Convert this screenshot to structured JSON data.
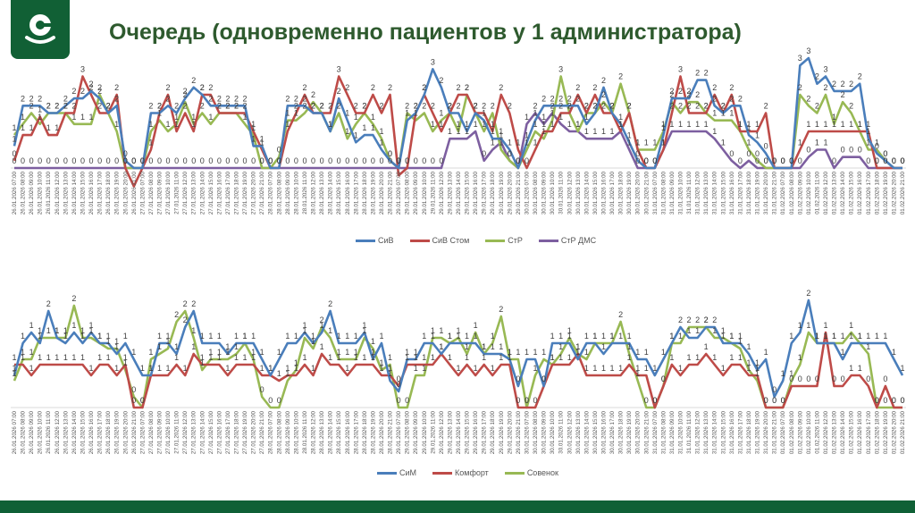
{
  "header": {
    "title": "Очередь (одновременно пациентов у 1 администратора)",
    "logo_icon": "clinic-logo-icon",
    "brand_color": "#116035"
  },
  "footer": {
    "color": "#0f6036"
  },
  "chart_data": [
    {
      "type": "line",
      "title": "",
      "xlabel": "",
      "ylabel": "",
      "ylim": [
        0,
        3
      ],
      "grid": false,
      "legend_position": "bottom",
      "data_labels": "rounded integers shown above points",
      "x_days": [
        "26.01.2026",
        "27.01.2026",
        "28.01.2026",
        "29.01.2026",
        "30.01.2026",
        "31.01.2026",
        "01.02.2026"
      ],
      "x_hours": [
        "07:00",
        "08:00",
        "09:00",
        "10:00",
        "11:00",
        "12:00",
        "13:00",
        "14:00",
        "15:00",
        "16:00",
        "17:00",
        "18:00",
        "19:00",
        "20:00",
        "21:00"
      ],
      "series": [
        {
          "name": "СиВ",
          "color": "#4a7ebb",
          "values": [
            0.6,
            1.7,
            1.7,
            1.7,
            1.5,
            1.5,
            1.7,
            1.9,
            1.9,
            2.1,
            1.9,
            1.5,
            1.7,
            0.2,
            0.0,
            0.0,
            1.5,
            1.5,
            1.7,
            1.5,
            1.9,
            2.2,
            2.0,
            1.7,
            1.7,
            1.7,
            1.7,
            1.7,
            0.6,
            0.6,
            0.0,
            0.0,
            1.7,
            1.7,
            1.7,
            1.5,
            1.5,
            1.0,
            1.9,
            1.3,
            0.7,
            0.9,
            0.9,
            0.5,
            0.2,
            0.0,
            1.3,
            1.5,
            2.0,
            2.7,
            2.2,
            1.5,
            1.5,
            1.0,
            1.5,
            1.3,
            0.8,
            0.8,
            0.5,
            0.0,
            0.7,
            1.3,
            1.7,
            1.7,
            1.7,
            1.7,
            1.7,
            1.2,
            1.5,
            2.2,
            1.5,
            1.2,
            0.7,
            0.2,
            0.0,
            0.0,
            0.9,
            1.9,
            1.9,
            1.9,
            2.4,
            2.4,
            1.7,
            1.5,
            1.7,
            1.7,
            0.9,
            0.7,
            0.4,
            0.0,
            0.0,
            0.0,
            2.8,
            3.0,
            2.3,
            2.5,
            2.1,
            2.1,
            2.1,
            2.3,
            0.8,
            0.4,
            0.2,
            0.0,
            0.0
          ]
        },
        {
          "name": "СиВ Стом",
          "color": "#be4b48",
          "values": [
            0.2,
            0.9,
            0.9,
            1.4,
            0.9,
            0.9,
            1.5,
            1.5,
            2.5,
            2.0,
            1.5,
            1.5,
            2.0,
            0.0,
            -0.5,
            0.0,
            0.5,
            1.5,
            2.0,
            1.0,
            1.5,
            1.0,
            2.0,
            2.0,
            1.5,
            1.5,
            1.5,
            1.5,
            1.0,
            0.5,
            0.0,
            0.0,
            1.0,
            1.5,
            2.0,
            1.5,
            1.5,
            1.5,
            2.5,
            2.0,
            1.5,
            1.5,
            2.0,
            1.5,
            2.0,
            -0.2,
            0.0,
            1.5,
            2.0,
            1.5,
            1.0,
            1.5,
            2.0,
            2.0,
            1.5,
            1.5,
            1.0,
            2.0,
            1.5,
            0.5,
            0.0,
            0.5,
            1.0,
            1.0,
            1.5,
            1.5,
            2.0,
            1.5,
            2.0,
            1.5,
            1.5,
            1.0,
            1.5,
            0.5,
            0.0,
            0.0,
            0.5,
            1.5,
            2.5,
            1.5,
            1.5,
            1.5,
            2.0,
            1.5,
            2.0,
            1.0,
            1.0,
            1.0,
            1.5,
            0.0,
            0.0,
            0.0,
            0.5,
            1.0,
            1.0,
            1.0,
            1.0,
            1.0,
            1.0,
            1.0,
            1.0,
            0.0,
            0.0,
            0.0,
            0.0
          ]
        },
        {
          "name": "СтР",
          "color": "#98b954",
          "values": [
            0.9,
            1.2,
            1.5,
            1.2,
            1.5,
            1.5,
            1.5,
            1.2,
            1.2,
            1.2,
            2.0,
            1.5,
            1.0,
            0.0,
            0.0,
            0.0,
            1.0,
            1.3,
            1.0,
            1.2,
            1.8,
            1.2,
            1.5,
            1.2,
            1.5,
            1.5,
            1.5,
            1.2,
            0.9,
            0.0,
            0.0,
            0.3,
            1.3,
            1.3,
            1.5,
            1.8,
            1.5,
            1.0,
            1.5,
            0.8,
            1.2,
            1.5,
            1.2,
            0.8,
            0.2,
            0.0,
            1.5,
            1.3,
            1.5,
            1.0,
            1.3,
            1.5,
            1.0,
            2.0,
            1.5,
            1.0,
            1.5,
            0.5,
            0.2,
            0.0,
            0.5,
            1.0,
            0.8,
            1.3,
            2.5,
            1.5,
            1.0,
            1.5,
            1.5,
            1.8,
            1.5,
            2.3,
            1.5,
            0.5,
            0.5,
            0.5,
            1.0,
            1.8,
            1.5,
            1.8,
            1.8,
            1.5,
            1.3,
            1.3,
            1.3,
            1.0,
            0.5,
            0.2,
            0.0,
            0.0,
            0.0,
            0.0,
            2.0,
            1.7,
            1.5,
            2.0,
            1.2,
            1.8,
            1.5,
            1.0,
            0.5,
            0.5,
            0.2,
            0.0,
            0.0
          ]
        },
        {
          "name": "СтР ДМС",
          "color": "#7d5fa0",
          "values": [
            0,
            0,
            0,
            0,
            0,
            0,
            0,
            0,
            0,
            0,
            0,
            0,
            0,
            0,
            0,
            0,
            0,
            0,
            0,
            0,
            0,
            0,
            0,
            0,
            0,
            0,
            0,
            0,
            0,
            0,
            0,
            0,
            0,
            0,
            0,
            0,
            0,
            0,
            0,
            0,
            0,
            0,
            0,
            0,
            0,
            0,
            0,
            0,
            0,
            0,
            0,
            0.8,
            0.8,
            0.8,
            1.0,
            0.2,
            0.5,
            0.7,
            0.2,
            0.0,
            1.2,
            1.5,
            1.2,
            1.5,
            1.2,
            1.0,
            1.0,
            0.8,
            0.8,
            0.8,
            0.8,
            1.0,
            0.5,
            0.0,
            0.0,
            0.0,
            0.5,
            1.0,
            1.0,
            1.0,
            1.0,
            1.0,
            0.8,
            0.5,
            0.2,
            0.0,
            0.2,
            0.0,
            0.0,
            0.0,
            0.0,
            0.0,
            0.0,
            0.3,
            0.5,
            0.5,
            0.0,
            0.3,
            0.3,
            0.3,
            0.0,
            0.0,
            0.0,
            0.0,
            0.0
          ]
        }
      ]
    },
    {
      "type": "line",
      "title": "",
      "xlabel": "",
      "ylabel": "",
      "ylim": [
        0,
        2
      ],
      "grid": false,
      "legend_position": "bottom",
      "data_labels": "rounded integers shown above points",
      "x_days": [
        "26.01.2026",
        "27.01.2026",
        "28.01.2026",
        "29.01.2026",
        "30.01.2026",
        "31.01.2026",
        "01.02.2026"
      ],
      "x_hours": [
        "07:00",
        "08:00",
        "09:00",
        "10:00",
        "11:00",
        "12:00",
        "13:00",
        "14:00",
        "15:00",
        "16:00",
        "17:00",
        "18:00",
        "19:00",
        "20:00",
        "21:00"
      ],
      "series": [
        {
          "name": "СиМ",
          "color": "#4a7ebb",
          "values": [
            0.6,
            1.2,
            1.4,
            1.2,
            1.8,
            1.3,
            1.2,
            1.4,
            1.2,
            1.4,
            1.2,
            1.2,
            1.0,
            1.2,
            0.9,
            0.6,
            0.6,
            1.2,
            1.2,
            1.0,
            1.5,
            1.8,
            1.2,
            1.2,
            1.2,
            1.0,
            1.2,
            1.2,
            1.2,
            0.9,
            0.6,
            0.9,
            1.2,
            1.2,
            1.4,
            1.2,
            1.4,
            1.8,
            1.2,
            1.2,
            1.2,
            1.4,
            0.9,
            1.2,
            0.5,
            0.3,
            0.9,
            0.9,
            1.2,
            1.2,
            1.0,
            1.2,
            1.2,
            1.2,
            1.2,
            1.0,
            1.0,
            1.0,
            0.9,
            0.4,
            0.9,
            0.9,
            0.4,
            1.2,
            1.2,
            1.2,
            0.9,
            1.2,
            1.2,
            1.0,
            1.2,
            1.2,
            1.2,
            0.9,
            0.9,
            0.6,
            0.9,
            1.2,
            1.5,
            1.3,
            1.3,
            1.5,
            1.5,
            1.2,
            1.2,
            1.2,
            1.0,
            0.7,
            0.9,
            0.2,
            0.5,
            1.2,
            1.4,
            2.0,
            1.2,
            1.2,
            1.2,
            0.9,
            1.2,
            1.2,
            1.2,
            1.2,
            1.2,
            0.9,
            0.6
          ]
        },
        {
          "name": "Комфорт",
          "color": "#be4b48",
          "values": [
            0.8,
            0.8,
            0.6,
            0.8,
            0.8,
            0.8,
            0.8,
            0.8,
            0.8,
            0.6,
            0.8,
            0.8,
            0.6,
            0.8,
            0.0,
            0.0,
            0.6,
            0.6,
            0.6,
            0.8,
            0.6,
            1.0,
            0.8,
            0.8,
            0.8,
            0.6,
            0.8,
            0.8,
            0.8,
            0.6,
            0.6,
            0.5,
            0.6,
            0.6,
            0.8,
            0.6,
            1.0,
            0.8,
            0.8,
            0.6,
            0.8,
            0.8,
            0.8,
            0.6,
            0.6,
            0.4,
            0.8,
            0.8,
            0.8,
            0.8,
            1.0,
            0.8,
            0.6,
            0.8,
            0.6,
            0.8,
            0.6,
            0.8,
            0.8,
            0.0,
            0.0,
            0.0,
            0.4,
            0.8,
            0.8,
            0.8,
            1.0,
            0.6,
            0.6,
            0.6,
            0.6,
            0.6,
            0.8,
            0.6,
            0.6,
            0.0,
            0.4,
            0.8,
            0.6,
            0.8,
            0.8,
            1.0,
            0.8,
            0.6,
            0.8,
            0.8,
            0.6,
            0.6,
            0.0,
            0.0,
            0.0,
            0.4,
            0.4,
            0.4,
            0.4,
            1.4,
            0.4,
            0.4,
            0.6,
            0.6,
            0.4,
            0.0,
            0.4,
            0.0,
            0.0
          ]
        },
        {
          "name": "Совенок",
          "color": "#98b954",
          "values": [
            0.5,
            0.9,
            0.9,
            1.3,
            1.3,
            1.3,
            1.3,
            1.9,
            1.3,
            1.3,
            1.2,
            1.1,
            1.1,
            0.7,
            0.2,
            0.0,
            0.9,
            1.0,
            1.1,
            1.6,
            1.8,
            1.3,
            0.7,
            0.9,
            0.9,
            0.9,
            1.0,
            1.2,
            0.9,
            0.2,
            0.0,
            0.0,
            0.5,
            0.7,
            1.3,
            1.1,
            1.5,
            1.3,
            0.9,
            0.9,
            0.9,
            1.3,
            1.1,
            0.7,
            0.8,
            0.0,
            0.0,
            0.6,
            0.6,
            1.3,
            1.3,
            1.2,
            1.3,
            1.0,
            1.4,
            1.0,
            1.2,
            1.7,
            0.9,
            0.9,
            0.0,
            0.6,
            0.9,
            0.8,
            1.0,
            1.3,
            1.0,
            0.9,
            1.2,
            1.2,
            1.2,
            1.6,
            1.0,
            0.5,
            0.0,
            0.0,
            0.4,
            1.2,
            1.2,
            1.5,
            1.5,
            1.5,
            1.3,
            1.3,
            1.2,
            1.1,
            0.7,
            0.5,
            0.0,
            0.0,
            0.0,
            0.5,
            0.8,
            1.4,
            1.2,
            1.2,
            1.2,
            1.2,
            1.4,
            1.2,
            1.0,
            0.0,
            0.0,
            0.0,
            0.0
          ]
        }
      ]
    }
  ]
}
